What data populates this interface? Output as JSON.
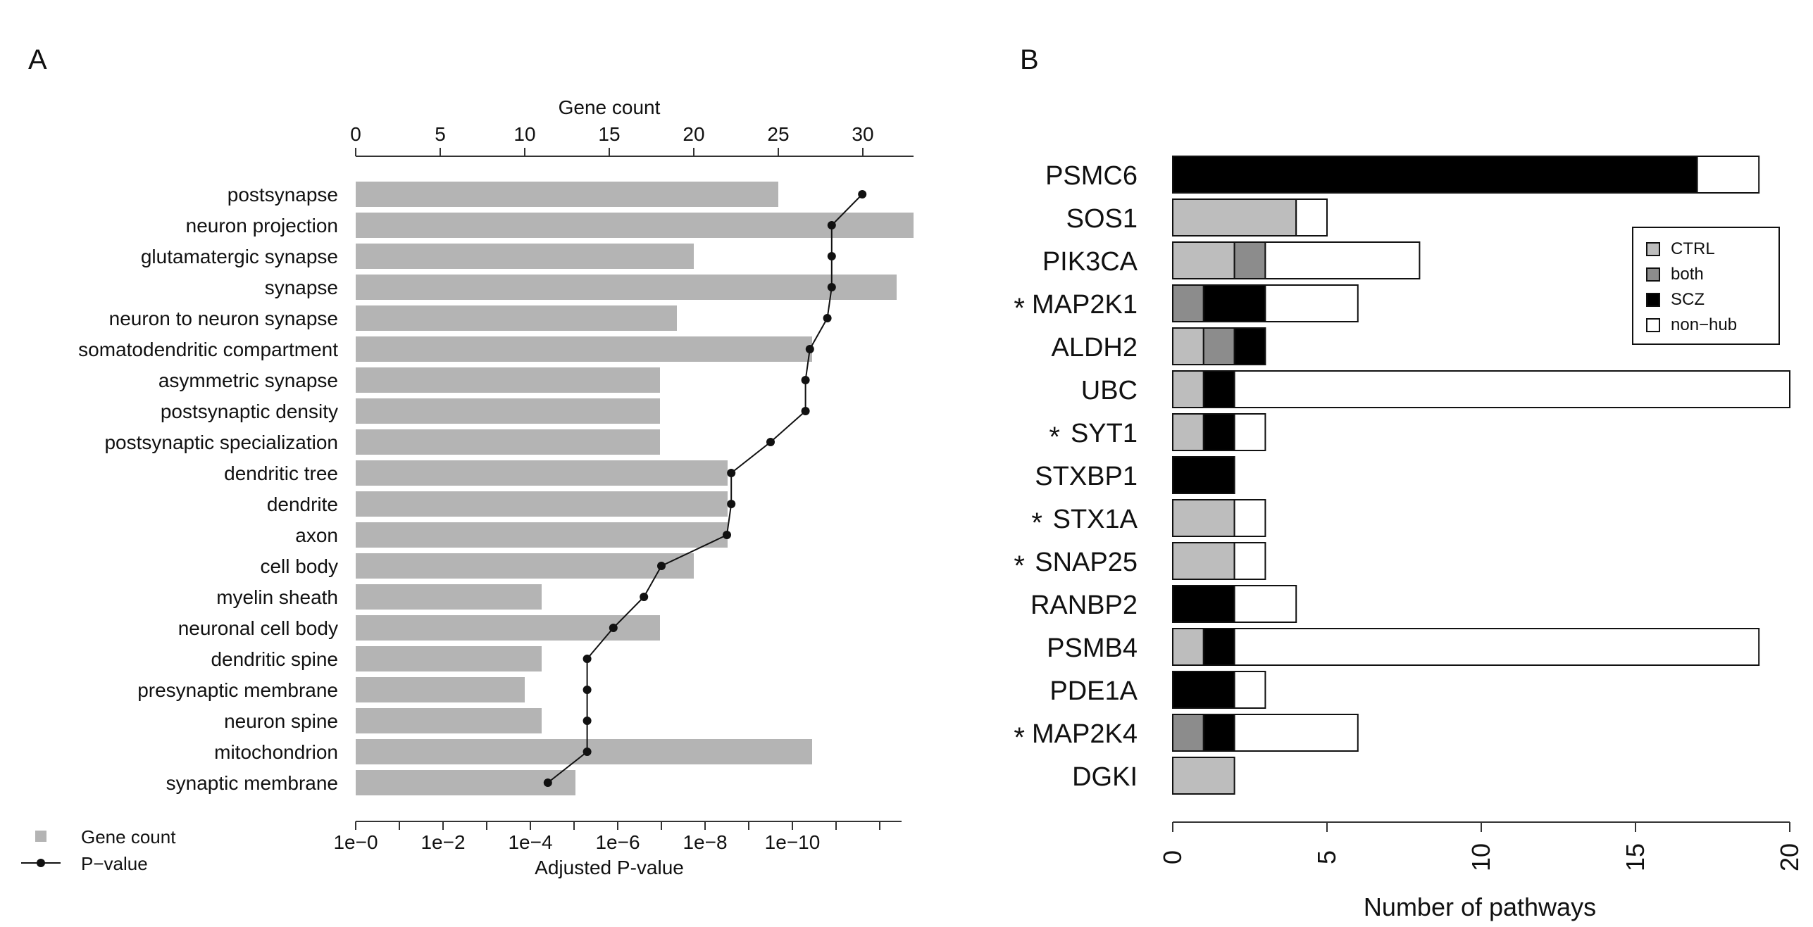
{
  "chart_data": [
    {
      "panel": "A",
      "type": "bar",
      "orientation": "horizontal",
      "top_axis_label": "Gene count",
      "bottom_axis_label": "Adjusted P-value",
      "gene_count_ticks": [
        0,
        5,
        10,
        15,
        20,
        25,
        30
      ],
      "gene_count_range": [
        0,
        33
      ],
      "pvalue_ticks": [
        {
          "exp": 0,
          "label": "1e−0"
        },
        {
          "exp": 2,
          "label": "1e−2"
        },
        {
          "exp": 4,
          "label": "1e−4"
        },
        {
          "exp": 6,
          "label": "1e−6"
        },
        {
          "exp": 8,
          "label": "1e−8"
        },
        {
          "exp": 10,
          "label": "1e−10"
        }
      ],
      "pvalue_range_exp": [
        0,
        12.5
      ],
      "categories": [
        "postsynapse",
        "neuron projection",
        "glutamatergic synapse",
        "synapse",
        "neuron to neuron synapse",
        "somatodendritic compartment",
        "asymmetric synapse",
        "postsynaptic density",
        "postsynaptic specialization",
        "dendritic tree",
        "dendrite",
        "axon",
        "cell body",
        "myelin sheath",
        "neuronal cell body",
        "dendritic spine",
        "presynaptic membrane",
        "neuron spine",
        "mitochondrion",
        "synaptic membrane"
      ],
      "gene_counts": [
        25,
        33,
        20,
        32,
        19,
        27,
        18,
        18,
        18,
        22,
        22,
        22,
        20,
        11,
        18,
        11,
        10,
        11,
        27,
        13
      ],
      "neg_log10_pvalues": [
        11.6,
        10.9,
        10.9,
        10.9,
        10.8,
        10.4,
        10.3,
        10.3,
        9.5,
        8.6,
        8.6,
        8.5,
        7.0,
        6.6,
        5.9,
        5.3,
        5.3,
        5.3,
        5.3,
        4.4
      ],
      "legend": [
        {
          "name": "Gene count",
          "kind": "bar"
        },
        {
          "name": "P−value",
          "kind": "line"
        }
      ],
      "colors": {
        "bar": "#b4b4b4",
        "line": "#111111"
      }
    },
    {
      "panel": "B",
      "type": "bar",
      "stacked": true,
      "orientation": "horizontal",
      "xlabel": "Number of pathways",
      "xticks": [
        0,
        5,
        10,
        15,
        20
      ],
      "xlim": [
        0,
        20
      ],
      "categories": [
        {
          "name": "PSMC6",
          "star": false
        },
        {
          "name": "SOS1",
          "star": false
        },
        {
          "name": "PIK3CA",
          "star": false
        },
        {
          "name": "MAP2K1",
          "star": true
        },
        {
          "name": "ALDH2",
          "star": false
        },
        {
          "name": "UBC",
          "star": false
        },
        {
          "name": "SYT1",
          "star": true
        },
        {
          "name": "STXBP1",
          "star": false
        },
        {
          "name": "STX1A",
          "star": true
        },
        {
          "name": "SNAP25",
          "star": true
        },
        {
          "name": "RANBP2",
          "star": false
        },
        {
          "name": "PSMB4",
          "star": false
        },
        {
          "name": "PDE1A",
          "star": false
        },
        {
          "name": "MAP2K4",
          "star": true
        },
        {
          "name": "DGKI",
          "star": false
        }
      ],
      "star_symbol": "*",
      "series": [
        {
          "name": "CTRL",
          "color": "#bdbdbd",
          "values": [
            0,
            4,
            2,
            0,
            1,
            1,
            1,
            0,
            2,
            2,
            0,
            1,
            0,
            0,
            2
          ]
        },
        {
          "name": "both",
          "color": "#8c8c8c",
          "values": [
            0,
            0,
            1,
            1,
            1,
            0,
            0,
            0,
            0,
            0,
            0,
            0,
            0,
            1,
            0
          ]
        },
        {
          "name": "SCZ",
          "color": "#000000",
          "values": [
            17,
            0,
            0,
            2,
            1,
            1,
            1,
            2,
            0,
            0,
            2,
            1,
            2,
            1,
            0
          ]
        },
        {
          "name": "non−hub",
          "color": "#ffffff",
          "values": [
            2,
            1,
            5,
            3,
            0,
            18,
            1,
            0,
            1,
            1,
            2,
            17,
            1,
            4,
            0
          ]
        }
      ],
      "legend_position": "top-right"
    }
  ],
  "panel_labels": [
    "A",
    "B"
  ]
}
